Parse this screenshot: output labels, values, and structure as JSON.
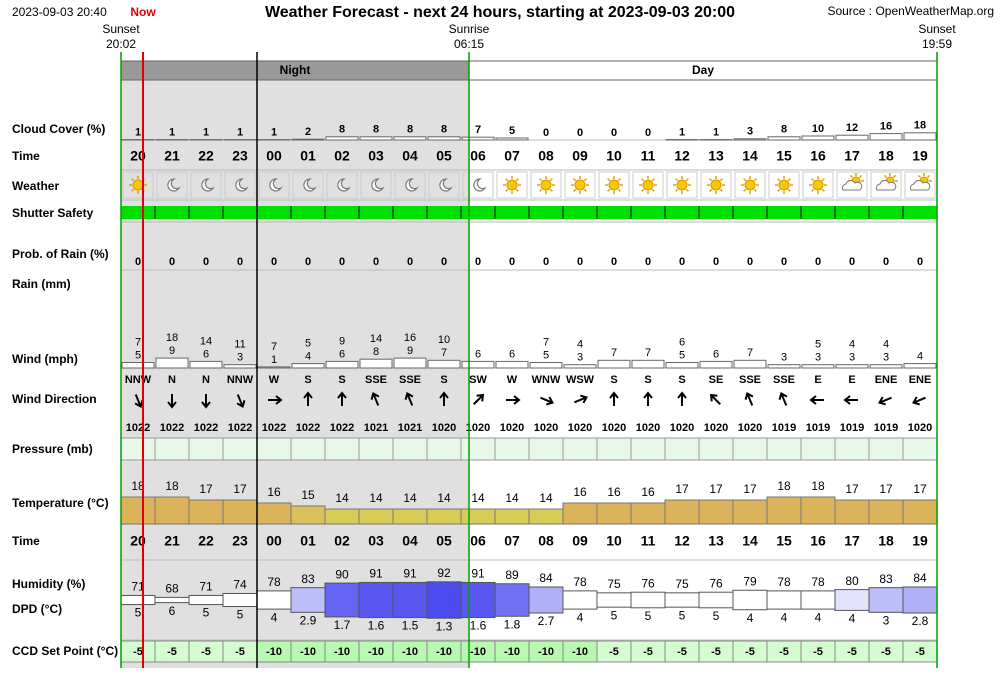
{
  "header": {
    "timestamp": "2023-09-03 20:40",
    "now": "Now",
    "title": "Weather Forecast - next 24 hours, starting at 2023-09-03 20:00",
    "source": "Source : OpenWeatherMap.org"
  },
  "sun_events": [
    {
      "label": "Sunset",
      "time": "20:02"
    },
    {
      "label": "Sunrise",
      "time": "06:15"
    },
    {
      "label": "Sunset",
      "time": "19:59"
    }
  ],
  "periods": [
    "Night",
    "Day"
  ],
  "row_labels": {
    "cloud_cover": "Cloud Cover (%)",
    "time": "Time",
    "weather": "Weather",
    "shutter": "Shutter Safety",
    "prob_rain": "Prob. of Rain (%)",
    "rain": "Rain (mm)",
    "wind": "Wind (mph)",
    "wind_direction": "Wind Direction",
    "pressure": "Pressure (mb)",
    "temperature": "Temperature (°C)",
    "time2": "Time",
    "humidity": "Humidity (%)",
    "dpd": "DPD (°C)",
    "ccd": "CCD Set Point (°C)"
  },
  "hours": [
    "20",
    "21",
    "22",
    "23",
    "00",
    "01",
    "02",
    "03",
    "04",
    "05",
    "06",
    "07",
    "08",
    "09",
    "10",
    "11",
    "12",
    "13",
    "14",
    "15",
    "16",
    "17",
    "18",
    "19"
  ],
  "cloud_cover": [
    1,
    1,
    1,
    1,
    1,
    2,
    8,
    8,
    8,
    8,
    7,
    5,
    0,
    0,
    0,
    0,
    1,
    1,
    3,
    8,
    10,
    12,
    16,
    18
  ],
  "prob_rain": [
    0,
    0,
    0,
    0,
    0,
    0,
    0,
    0,
    0,
    0,
    0,
    0,
    0,
    0,
    0,
    0,
    0,
    0,
    0,
    0,
    0,
    0,
    0,
    0
  ],
  "wind_gust": [
    7,
    18,
    14,
    11,
    7,
    5,
    9,
    14,
    16,
    10,
    null,
    null,
    7,
    4,
    null,
    null,
    6,
    null,
    null,
    null,
    5,
    4,
    4,
    null
  ],
  "wind_speed": [
    5,
    9,
    6,
    3,
    1,
    4,
    6,
    8,
    9,
    7,
    6,
    6,
    5,
    3,
    7,
    7,
    5,
    6,
    7,
    3,
    3,
    3,
    3,
    4
  ],
  "wind_direction": [
    "NNW",
    "N",
    "N",
    "NNW",
    "W",
    "S",
    "S",
    "SSE",
    "SSE",
    "S",
    "SW",
    "W",
    "WNW",
    "WSW",
    "S",
    "S",
    "S",
    "SE",
    "SSE",
    "SSE",
    "E",
    "E",
    "ENE",
    "ENE"
  ],
  "pressure": [
    1022,
    1022,
    1022,
    1022,
    1022,
    1022,
    1022,
    1021,
    1021,
    1020,
    1020,
    1020,
    1020,
    1020,
    1020,
    1020,
    1020,
    1020,
    1020,
    1019,
    1019,
    1019,
    1019,
    1020
  ],
  "temperature": [
    18,
    18,
    17,
    17,
    16,
    15,
    14,
    14,
    14,
    14,
    14,
    14,
    14,
    16,
    16,
    16,
    17,
    17,
    17,
    18,
    18,
    17,
    17,
    17
  ],
  "humidity": [
    71,
    68,
    71,
    74,
    78,
    83,
    90,
    91,
    91,
    92,
    91,
    89,
    84,
    78,
    75,
    76,
    75,
    76,
    79,
    78,
    78,
    80,
    83,
    84
  ],
  "dpd": [
    5,
    6,
    5,
    5,
    4,
    2.9,
    1.7,
    1.6,
    1.5,
    1.3,
    1.6,
    1.8,
    2.7,
    4,
    5,
    5,
    5,
    5,
    4,
    4,
    4,
    4,
    3,
    2.8
  ],
  "ccd_set_point": [
    -5,
    -5,
    -5,
    -5,
    -10,
    -10,
    -10,
    -10,
    -10,
    -10,
    -10,
    -10,
    -10,
    -10,
    -5,
    -5,
    -5,
    -5,
    -5,
    -5,
    -5,
    -5,
    -5,
    -5
  ]
}
